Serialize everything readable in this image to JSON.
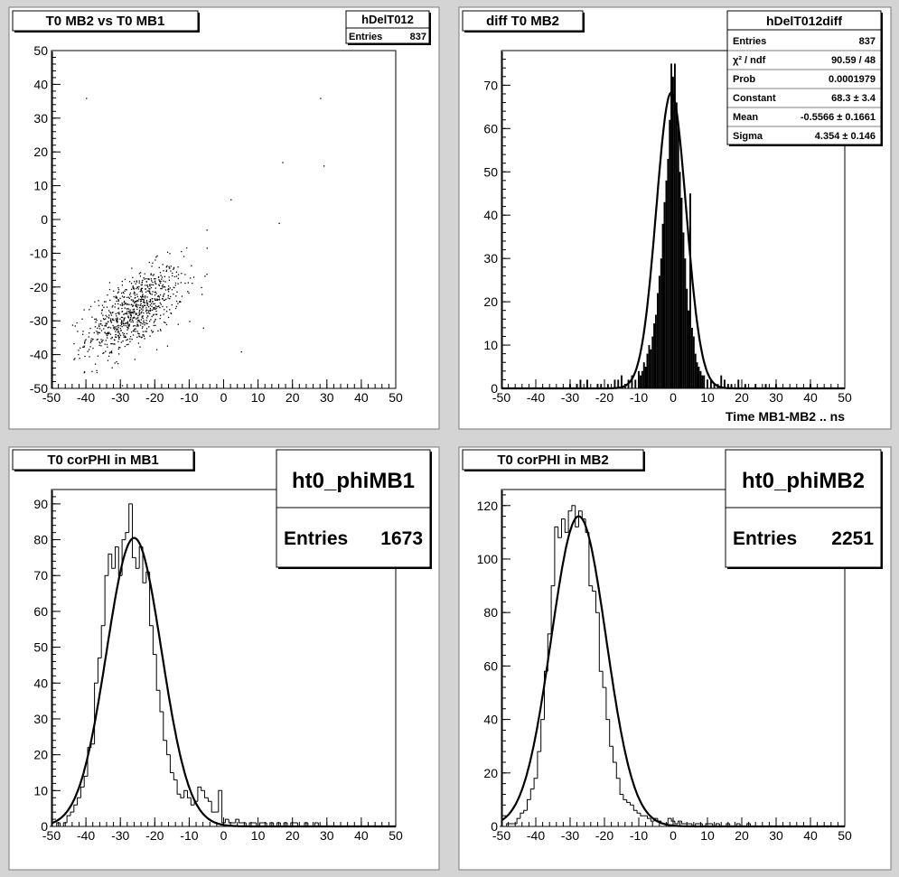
{
  "chart_data": [
    {
      "type": "scatter",
      "title": "T0 MB2 vs T0 MB1",
      "xlim": [
        -50,
        50
      ],
      "ylim": [
        -50,
        50
      ],
      "xticks": [
        "-50",
        "-40",
        "-30",
        "-20",
        "-10",
        "0",
        "10",
        "20",
        "30",
        "40",
        "50"
      ],
      "yticks": [
        "-50",
        "-40",
        "-30",
        "-20",
        "-10",
        "0",
        "10",
        "20",
        "30",
        "40",
        "50"
      ],
      "stats": {
        "name": "hDelT012",
        "rows": [
          [
            "Entries",
            "837"
          ]
        ]
      },
      "cluster": {
        "n": 837,
        "x_mean": -26,
        "y_mean": -27,
        "x_sigma": 7,
        "y_sigma": 6.5,
        "corr": 0.6
      },
      "outliers": [
        [
          -40,
          36
        ],
        [
          28,
          36
        ],
        [
          17,
          17
        ],
        [
          29,
          16
        ],
        [
          2,
          6
        ],
        [
          -5,
          -3
        ],
        [
          16,
          -1
        ],
        [
          5,
          -39
        ],
        [
          -10,
          -30
        ],
        [
          -6,
          -32
        ]
      ]
    },
    {
      "type": "bar",
      "title": "diff T0 MB2",
      "xlabel": "Time MB1-MB2  ..  ns",
      "xlim": [
        -50,
        50
      ],
      "ylim": [
        0,
        78
      ],
      "xticks": [
        "-50",
        "-40",
        "-30",
        "-20",
        "-10",
        "0",
        "10",
        "20",
        "30",
        "40",
        "50"
      ],
      "yticks": [
        "0",
        "10",
        "20",
        "30",
        "40",
        "50",
        "60",
        "70"
      ],
      "stats": {
        "name": "hDelT012diff",
        "rows": [
          [
            "Entries",
            "837"
          ],
          [
            "χ² / ndf",
            "90.59 / 48"
          ],
          [
            "Prob",
            "0.0001979"
          ],
          [
            "Constant",
            "68.3 ± 3.4"
          ],
          [
            "Mean",
            "-0.5566 ± 0.1661"
          ],
          [
            "Sigma",
            "4.354 ± 0.146"
          ]
        ]
      },
      "fit": {
        "type": "gaus",
        "constant": 68.3,
        "mean": -0.5566,
        "sigma": 4.354
      },
      "bin_width": 0.5,
      "bins": [
        [
          -30,
          1
        ],
        [
          -28,
          1
        ],
        [
          -27,
          2
        ],
        [
          -25,
          2
        ],
        [
          -22,
          1
        ],
        [
          -21,
          1
        ],
        [
          -19,
          1
        ],
        [
          -17,
          2
        ],
        [
          -16,
          2
        ],
        [
          -15,
          3
        ],
        [
          -14,
          1
        ],
        [
          -13,
          2
        ],
        [
          -12,
          3
        ],
        [
          -11,
          2
        ],
        [
          -10,
          4
        ],
        [
          -9.5,
          3
        ],
        [
          -9,
          4
        ],
        [
          -8.5,
          6
        ],
        [
          -8,
          5
        ],
        [
          -7.5,
          8
        ],
        [
          -7,
          10
        ],
        [
          -6.5,
          9
        ],
        [
          -6,
          12
        ],
        [
          -5.5,
          15
        ],
        [
          -5,
          17
        ],
        [
          -4.5,
          22
        ],
        [
          -4,
          26
        ],
        [
          -3.5,
          30
        ],
        [
          -3,
          38
        ],
        [
          -2.5,
          43
        ],
        [
          -2,
          48
        ],
        [
          -1.5,
          53
        ],
        [
          -1,
          62
        ],
        [
          -0.5,
          75
        ],
        [
          0,
          72
        ],
        [
          0.5,
          75
        ],
        [
          1,
          66
        ],
        [
          1.5,
          60
        ],
        [
          2,
          50
        ],
        [
          2.5,
          44
        ],
        [
          3,
          36
        ],
        [
          3.5,
          30
        ],
        [
          4,
          23
        ],
        [
          4.5,
          18
        ],
        [
          5,
          45
        ],
        [
          5.5,
          14
        ],
        [
          6,
          12
        ],
        [
          6.5,
          8
        ],
        [
          7,
          6
        ],
        [
          7.5,
          5
        ],
        [
          8,
          4
        ],
        [
          8.5,
          3
        ],
        [
          9,
          3
        ],
        [
          10,
          2
        ],
        [
          11,
          2
        ],
        [
          12,
          1
        ],
        [
          13,
          1
        ],
        [
          14,
          3
        ],
        [
          15,
          2
        ],
        [
          16,
          1
        ],
        [
          17,
          1
        ],
        [
          19,
          2
        ],
        [
          21,
          1
        ],
        [
          24,
          1
        ],
        [
          27,
          1
        ],
        [
          30,
          1
        ],
        [
          40,
          1
        ]
      ]
    },
    {
      "type": "bar",
      "title": "T0 corPHI in MB1",
      "xlim": [
        -50,
        50
      ],
      "ylim": [
        0,
        94
      ],
      "xticks": [
        "-50",
        "-40",
        "-30",
        "-20",
        "-10",
        "0",
        "10",
        "20",
        "30",
        "40",
        "50"
      ],
      "yticks": [
        "0",
        "10",
        "20",
        "30",
        "40",
        "50",
        "60",
        "70",
        "80",
        "90"
      ],
      "stats": {
        "name": "ht0_phiMB1",
        "rows": [
          [
            "Entries",
            "1673"
          ]
        ]
      },
      "fit": {
        "type": "gaus",
        "constant": 80.5,
        "mean": -26.0,
        "sigma": 8.0
      },
      "bin_width": 1,
      "bins": [
        [
          -50,
          0
        ],
        [
          -49,
          0
        ],
        [
          -48,
          1
        ],
        [
          -47,
          0
        ],
        [
          -46,
          1
        ],
        [
          -45,
          3
        ],
        [
          -44,
          4
        ],
        [
          -43,
          6
        ],
        [
          -42,
          8
        ],
        [
          -41,
          11
        ],
        [
          -40,
          14
        ],
        [
          -39,
          22
        ],
        [
          -38,
          23
        ],
        [
          -37,
          40
        ],
        [
          -36,
          47
        ],
        [
          -35,
          56
        ],
        [
          -34,
          70
        ],
        [
          -33,
          76
        ],
        [
          -32,
          72
        ],
        [
          -31,
          78
        ],
        [
          -30,
          70
        ],
        [
          -29,
          80
        ],
        [
          -28,
          82
        ],
        [
          -27,
          90
        ],
        [
          -26,
          75
        ],
        [
          -25,
          72
        ],
        [
          -24,
          78
        ],
        [
          -23,
          68
        ],
        [
          -22,
          71
        ],
        [
          -21,
          56
        ],
        [
          -20,
          48
        ],
        [
          -19,
          38
        ],
        [
          -18,
          32
        ],
        [
          -17,
          24
        ],
        [
          -16,
          20
        ],
        [
          -15,
          15
        ],
        [
          -14,
          13
        ],
        [
          -13,
          9
        ],
        [
          -12,
          8
        ],
        [
          -11,
          10
        ],
        [
          -10,
          8
        ],
        [
          -9,
          6
        ],
        [
          -8,
          7
        ],
        [
          -7,
          11
        ],
        [
          -6,
          10
        ],
        [
          -5,
          8
        ],
        [
          -4,
          7
        ],
        [
          -3,
          4
        ],
        [
          -2,
          4
        ],
        [
          -1,
          10
        ],
        [
          0,
          1
        ],
        [
          1,
          2
        ],
        [
          2,
          1
        ],
        [
          3,
          1
        ],
        [
          4,
          2
        ],
        [
          5,
          1
        ],
        [
          6,
          1
        ],
        [
          7,
          0
        ],
        [
          8,
          1
        ],
        [
          9,
          1
        ],
        [
          10,
          0
        ],
        [
          11,
          1
        ],
        [
          12,
          1
        ],
        [
          13,
          0
        ],
        [
          14,
          1
        ],
        [
          15,
          0
        ],
        [
          16,
          1
        ],
        [
          17,
          0
        ],
        [
          18,
          1
        ],
        [
          19,
          0
        ],
        [
          20,
          1
        ],
        [
          21,
          1
        ],
        [
          22,
          0
        ],
        [
          23,
          0
        ],
        [
          24,
          1
        ],
        [
          25,
          0
        ],
        [
          26,
          0
        ],
        [
          27,
          1
        ],
        [
          28,
          0
        ],
        [
          29,
          0
        ],
        [
          30,
          0
        ]
      ]
    },
    {
      "type": "bar",
      "title": "T0 corPHI in MB2",
      "xlim": [
        -50,
        50
      ],
      "ylim": [
        0,
        126
      ],
      "xticks": [
        "-50",
        "-40",
        "-30",
        "-20",
        "-10",
        "0",
        "10",
        "20",
        "30",
        "40",
        "50"
      ],
      "yticks": [
        "0",
        "20",
        "40",
        "60",
        "80",
        "100",
        "120"
      ],
      "stats": {
        "name": "ht0_phiMB2",
        "rows": [
          [
            "Entries",
            "2251"
          ]
        ]
      },
      "fit": {
        "type": "gaus",
        "constant": 116,
        "mean": -27.5,
        "sigma": 8.0
      },
      "bin_width": 1,
      "bins": [
        [
          -50,
          0
        ],
        [
          -49,
          0
        ],
        [
          -48,
          1
        ],
        [
          -47,
          1
        ],
        [
          -46,
          1
        ],
        [
          -45,
          3
        ],
        [
          -44,
          5
        ],
        [
          -43,
          6
        ],
        [
          -42,
          10
        ],
        [
          -41,
          14
        ],
        [
          -40,
          18
        ],
        [
          -39,
          28
        ],
        [
          -38,
          40
        ],
        [
          -37,
          58
        ],
        [
          -36,
          72
        ],
        [
          -35,
          90
        ],
        [
          -34,
          112
        ],
        [
          -33,
          108
        ],
        [
          -32,
          115
        ],
        [
          -31,
          110
        ],
        [
          -30,
          118
        ],
        [
          -29,
          120
        ],
        [
          -28,
          112
        ],
        [
          -27,
          118
        ],
        [
          -26,
          115
        ],
        [
          -25,
          110
        ],
        [
          -24,
          90
        ],
        [
          -23,
          88
        ],
        [
          -22,
          80
        ],
        [
          -21,
          58
        ],
        [
          -20,
          52
        ],
        [
          -19,
          40
        ],
        [
          -18,
          30
        ],
        [
          -17,
          24
        ],
        [
          -16,
          18
        ],
        [
          -15,
          12
        ],
        [
          -14,
          10
        ],
        [
          -13,
          9
        ],
        [
          -12,
          8
        ],
        [
          -11,
          6
        ],
        [
          -10,
          5
        ],
        [
          -9,
          4
        ],
        [
          -8,
          4
        ],
        [
          -7,
          3
        ],
        [
          -6,
          2
        ],
        [
          -5,
          3
        ],
        [
          -4,
          2
        ],
        [
          -3,
          1
        ],
        [
          -2,
          1
        ],
        [
          -1,
          3
        ],
        [
          0,
          2
        ],
        [
          1,
          1
        ],
        [
          2,
          2
        ],
        [
          3,
          1
        ],
        [
          4,
          1
        ],
        [
          5,
          1
        ],
        [
          6,
          0
        ],
        [
          7,
          1
        ],
        [
          8,
          1
        ],
        [
          9,
          0
        ],
        [
          10,
          1
        ],
        [
          11,
          1
        ],
        [
          12,
          0
        ],
        [
          13,
          1
        ],
        [
          14,
          0
        ],
        [
          15,
          0
        ],
        [
          16,
          1
        ],
        [
          17,
          0
        ],
        [
          18,
          0
        ],
        [
          19,
          1
        ],
        [
          20,
          0
        ],
        [
          21,
          0
        ],
        [
          22,
          1
        ],
        [
          23,
          0
        ],
        [
          24,
          0
        ],
        [
          25,
          0
        ]
      ]
    }
  ]
}
